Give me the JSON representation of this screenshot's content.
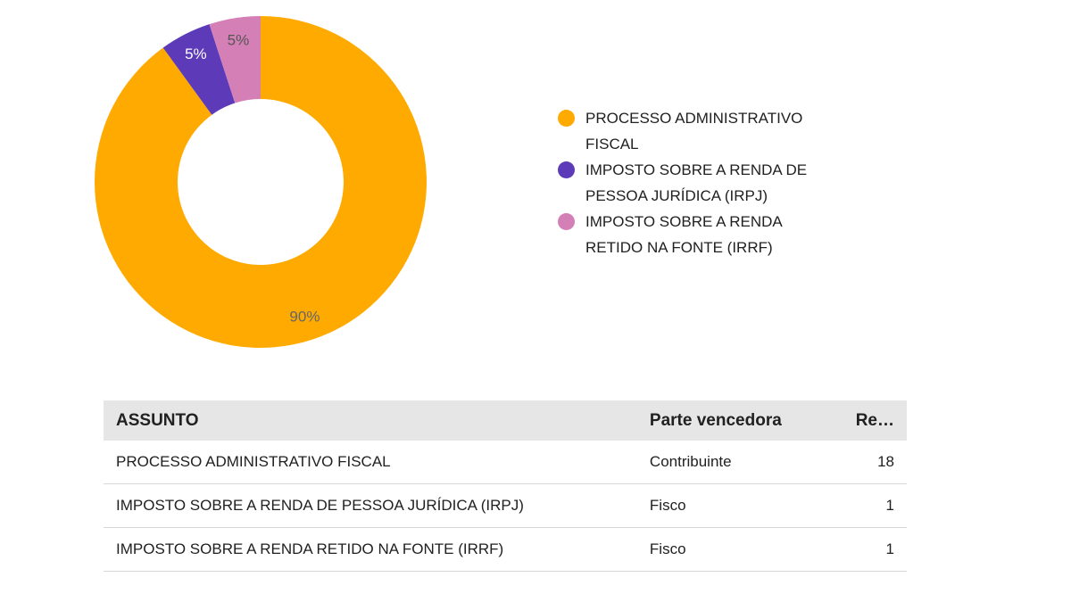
{
  "chart_data": {
    "type": "pie",
    "variant": "donut",
    "slices": [
      {
        "label": "PROCESSO ADMINISTRATIVO FISCAL",
        "value": 90,
        "display": "90%",
        "color": "#ffaa00"
      },
      {
        "label": "IMPOSTO SOBRE A RENDA DE PESSOA JURÍDICA (IRPJ)",
        "value": 5,
        "display": "5%",
        "color": "#5c3ab8"
      },
      {
        "label": "IMPOSTO SOBRE A RENDA RETIDO NA FONTE (IRRF)",
        "value": 5,
        "display": "5%",
        "color": "#d57fb7"
      }
    ],
    "legend_position": "right",
    "legend": [
      {
        "lines": [
          "PROCESSO ADMINISTRATIVO",
          "FISCAL"
        ],
        "color": "#ffaa00"
      },
      {
        "lines": [
          "IMPOSTO SOBRE A RENDA DE",
          "PESSOA JURÍDICA (IRPJ)"
        ],
        "color": "#5c3ab8"
      },
      {
        "lines": [
          "IMPOSTO SOBRE A RENDA",
          "RETIDO NA FONTE (IRRF)"
        ],
        "color": "#d57fb7"
      }
    ],
    "label_colors": [
      "#666666",
      "#ffffff",
      "#555555"
    ]
  },
  "table": {
    "headers": [
      "ASSUNTO",
      "Parte vencedora",
      "Re…"
    ],
    "rows": [
      [
        "PROCESSO ADMINISTRATIVO FISCAL",
        "Contribuinte",
        "18"
      ],
      [
        "IMPOSTO SOBRE A RENDA DE PESSOA JURÍDICA (IRPJ)",
        "Fisco",
        "1"
      ],
      [
        "IMPOSTO SOBRE A RENDA RETIDO NA FONTE (IRRF)",
        "Fisco",
        "1"
      ]
    ]
  }
}
